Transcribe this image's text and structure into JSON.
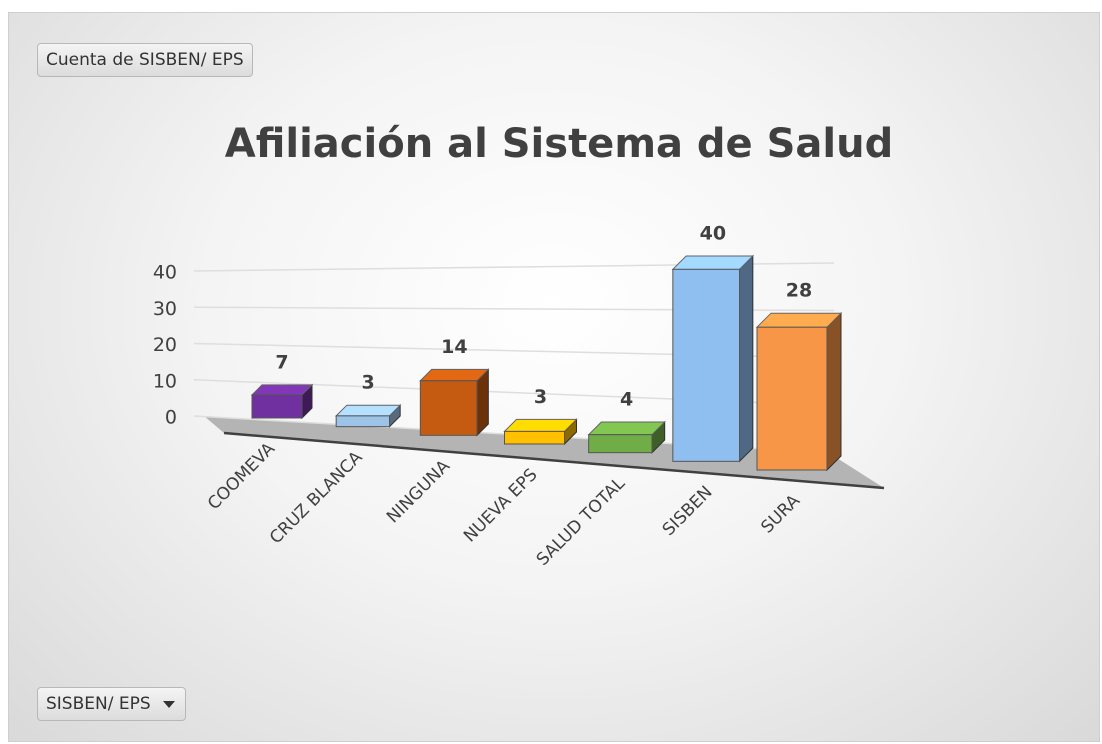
{
  "field_buttons": {
    "value_field": "Cuenta de SISBEN/ EPS",
    "axis_field": "SISBEN/ EPS"
  },
  "chart_data": {
    "type": "bar3d",
    "title": "Afiliación al Sistema de Salud",
    "categories": [
      "COOMEVA",
      "CRUZ BLANCA",
      "NINGUNA",
      "NUEVA EPS",
      "SALUD TOTAL",
      "SISBEN",
      "SURA"
    ],
    "values": [
      7,
      3,
      14,
      3,
      4,
      40,
      28
    ],
    "colors": [
      "#7030a0",
      "#9dc3e6",
      "#c55a11",
      "#ffc000",
      "#70ad47",
      "#8fbef0",
      "#f79646"
    ],
    "ylim": [
      0,
      40
    ],
    "yticks": [
      0,
      10,
      20,
      30,
      40
    ],
    "grid": true,
    "data_labels": true
  }
}
